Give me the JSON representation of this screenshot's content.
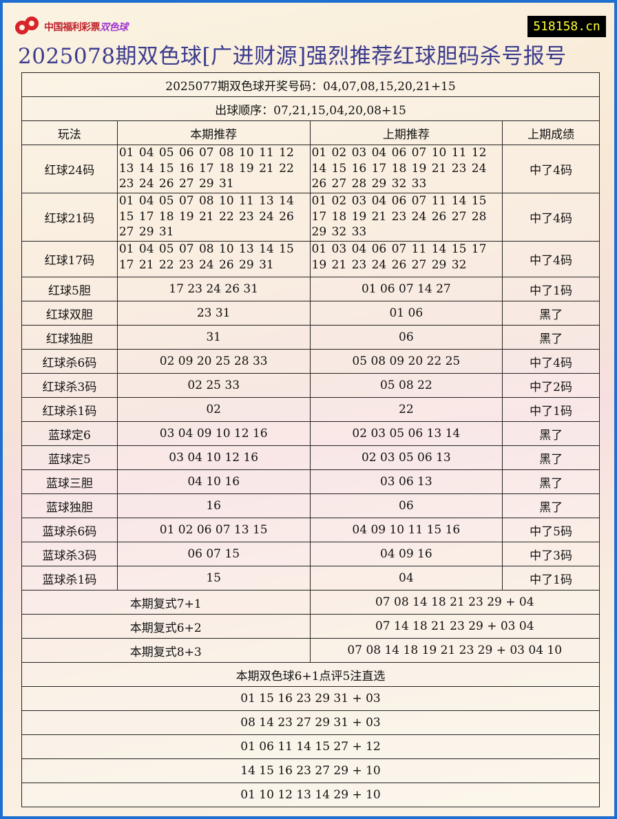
{
  "header": {
    "logo_text": "中国福利彩票",
    "logo_brand": "双色球",
    "site": "518158.cn",
    "title": "2025078期双色球[广进财源]强烈推荐红球胆码杀号报号"
  },
  "draw": {
    "result": "2025077期双色球开奖号码：04,07,08,15,20,21+15",
    "order": "出球顺序：07,21,15,04,20,08+15"
  },
  "columns": [
    "玩法",
    "本期推荐",
    "上期推荐",
    "上期成绩"
  ],
  "rows": [
    {
      "play": "红球24码",
      "current": "01 04 05 06 07 08 10 11 12 13 14 15 16 17 18 19 21 22 23 24 26 27 29 31",
      "previous": "01 02 03 04 06 07 10 11 12 14 15 16 17 18 19 21 23 24 26 27 28 29 32 33",
      "result": "中了4码"
    },
    {
      "play": "红球21码",
      "current": "01 04 05 07 08 10 11 13 14 15 17 18 19 21 22 23 24 26 27 29 31",
      "previous": "01 02 03 04 06 07 11 14 15 17 18 19 21 23 24 26 27 28 29 32 33",
      "result": "中了4码"
    },
    {
      "play": "红球17码",
      "current": "01 04 05 07 08 10 13 14 15 17 21 22 23 24 26 29 31",
      "previous": "01 03 04 06 07 11 14 15 17 19 21 23 24 26 27 29 32",
      "result": "中了4码"
    },
    {
      "play": "红球5胆",
      "current": "17 23 24 26 31",
      "previous": "01 06 07 14 27",
      "result": "中了1码"
    },
    {
      "play": "红球双胆",
      "current": "23 31",
      "previous": "01 06",
      "result": "黑了"
    },
    {
      "play": "红球独胆",
      "current": "31",
      "previous": "06",
      "result": "黑了"
    },
    {
      "play": "红球杀6码",
      "current": "02 09 20 25 28 33",
      "previous": "05 08 09 20 22 25",
      "result": "中了4码"
    },
    {
      "play": "红球杀3码",
      "current": "02 25 33",
      "previous": "05 08 22",
      "result": "中了2码"
    },
    {
      "play": "红球杀1码",
      "current": "02",
      "previous": "22",
      "result": "中了1码"
    },
    {
      "play": "蓝球定6",
      "current": "03 04 09 10 12 16",
      "previous": "02 03 05 06 13 14",
      "result": "黑了"
    },
    {
      "play": "蓝球定5",
      "current": "03 04 10 12 16",
      "previous": "02 03 05 06 13",
      "result": "黑了"
    },
    {
      "play": "蓝球三胆",
      "current": "04 10 16",
      "previous": "03 06 13",
      "result": "黑了"
    },
    {
      "play": "蓝球独胆",
      "current": "16",
      "previous": "06",
      "result": "黑了"
    },
    {
      "play": "蓝球杀6码",
      "current": "01 02 06 07 13 15",
      "previous": "04 09 10 11 15 16",
      "result": "中了5码"
    },
    {
      "play": "蓝球杀3码",
      "current": "06 07 15",
      "previous": "04 09 16",
      "result": "中了3码"
    },
    {
      "play": "蓝球杀1码",
      "current": "15",
      "previous": "04",
      "result": "中了1码"
    }
  ],
  "fushi": [
    {
      "label": "本期复式7+1",
      "numbers": "07 08 14 18 21 23 29 + 04"
    },
    {
      "label": "本期复式6+2",
      "numbers": "07 14 18 21 23 29 + 03 04"
    },
    {
      "label": "本期复式8+3",
      "numbers": "07 08 14 18 19 21 23 29 + 03 04 10"
    }
  ],
  "picks": {
    "title": "本期双色球6+1点评5注直选",
    "items": [
      "01 15 16 23 29 31 + 03",
      "08 14 23 27 29 31 + 03",
      "01 06 11 14 15 27 + 12",
      "14 15 16 23 27 29 + 10",
      "01 10 12 13 14 29 + 10"
    ]
  }
}
